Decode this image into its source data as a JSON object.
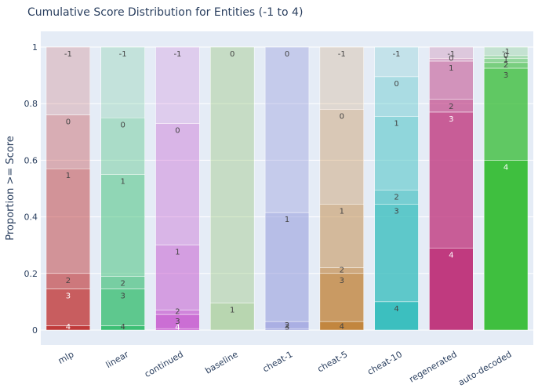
{
  "chart_data": {
    "type": "bar",
    "stacked": true,
    "title": "Cumulative Score Distribution for Entities (-1 to 4)",
    "xlabel": "",
    "ylabel": "Proportion >= Score",
    "ylim": [
      0,
      1
    ],
    "yticks": [
      0,
      0.2,
      0.4,
      0.6,
      0.8,
      1
    ],
    "ytick_labels": [
      "0",
      "0.2",
      "0.4",
      "0.6",
      "0.8",
      "1"
    ],
    "scores": [
      "-1",
      "0",
      "1",
      "2",
      "3",
      "4"
    ],
    "series_levels": [
      {
        "name": "mlp",
        "color": "#c03a3a",
        "cum": [
          1.0,
          0.76,
          0.57,
          0.2,
          0.145,
          0.015
        ]
      },
      {
        "name": "linear",
        "color": "#3cbf74",
        "cum": [
          1.0,
          0.75,
          0.55,
          0.19,
          0.145,
          0.015
        ]
      },
      {
        "name": "continued",
        "color": "#c44fcc",
        "cum": [
          1.0,
          0.73,
          0.3,
          0.07,
          0.055,
          0.005
        ]
      },
      {
        "name": "baseline",
        "color": "#8cc06a",
        "cum": [
          1.0,
          1.0,
          0.095,
          0.0,
          0.0,
          0.0
        ]
      },
      {
        "name": "cheat-1",
        "color": "#8a8fd8",
        "cum": [
          1.0,
          1.0,
          0.415,
          0.03,
          0.005,
          0.0
        ]
      },
      {
        "name": "cheat-5",
        "color": "#c2863f",
        "cum": [
          1.0,
          0.78,
          0.445,
          0.22,
          0.2,
          0.03
        ]
      },
      {
        "name": "cheat-10",
        "color": "#3cbfbf",
        "cum": [
          1.0,
          0.895,
          0.755,
          0.495,
          0.445,
          0.1
        ]
      },
      {
        "name": "regenerated",
        "color": "#c03a7f",
        "cum": [
          1.0,
          0.96,
          0.95,
          0.815,
          0.77,
          0.29
        ]
      },
      {
        "name": "auto-decoded",
        "color": "#3fbf3f",
        "cum": [
          1.0,
          0.97,
          0.96,
          0.945,
          0.925,
          0.6
        ]
      }
    ],
    "opacities": [
      0.2,
      0.35,
      0.5,
      0.65,
      0.8,
      1.0
    ],
    "categories": [
      "mlp",
      "linear",
      "continued",
      "baseline",
      "cheat-1",
      "cheat-5",
      "cheat-10",
      "regenerated",
      "auto-decoded"
    ]
  }
}
